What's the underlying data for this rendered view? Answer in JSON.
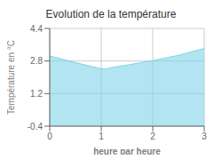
{
  "chart_data": {
    "type": "area",
    "title": "Evolution de la température",
    "xlabel": "heure par heure",
    "ylabel": "Température en °C",
    "x": [
      0,
      0.5,
      1.0,
      1.1,
      1.2,
      1.5,
      2.0,
      2.5,
      3.0
    ],
    "values": [
      3.05,
      2.72,
      2.42,
      2.42,
      2.48,
      2.6,
      2.82,
      3.08,
      3.42
    ],
    "xlim": [
      0,
      3
    ],
    "ylim": [
      -0.4,
      4.4
    ],
    "xticks": [
      0,
      1,
      2,
      3
    ],
    "yticks": [
      -0.4,
      1.2,
      2.8,
      4.4
    ],
    "color": "#7fd4e8",
    "grid": true
  }
}
